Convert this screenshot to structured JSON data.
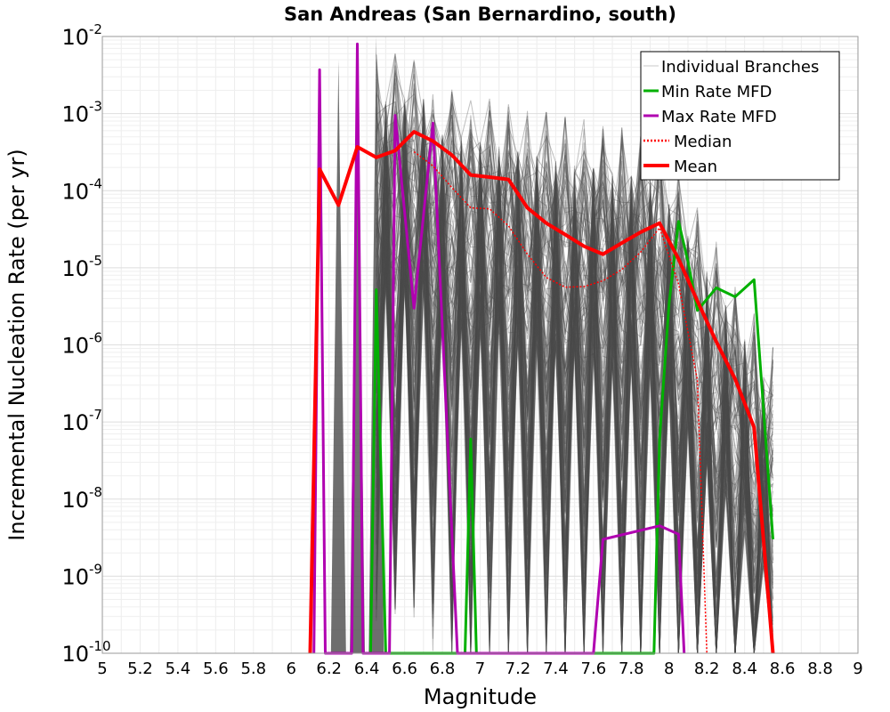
{
  "chart_data": {
    "type": "line",
    "title": "San Andreas (San Bernardino, south)",
    "xlabel": "Magnitude",
    "ylabel": "Incremental Nucleation Rate (per yr)",
    "xlim": [
      5,
      9
    ],
    "ylim": [
      1e-10,
      0.01
    ],
    "yscale": "log",
    "grid": true,
    "legend_position": "top-right",
    "x_ticks": [
      "5",
      "5.2",
      "5.4",
      "5.6",
      "5.8",
      "6",
      "6.2",
      "6.4",
      "6.6",
      "6.8",
      "7",
      "7.2",
      "7.4",
      "7.6",
      "7.8",
      "8",
      "8.2",
      "8.4",
      "8.6",
      "8.8",
      "9"
    ],
    "x_tick_values": [
      5,
      5.2,
      5.4,
      5.6,
      5.8,
      6,
      6.2,
      6.4,
      6.6,
      6.8,
      7,
      7.2,
      7.4,
      7.6,
      7.8,
      8,
      8.2,
      8.4,
      8.6,
      8.8,
      9
    ],
    "y_ticks": [
      {
        "base": "10",
        "exp": "-2",
        "value": 0.01
      },
      {
        "base": "10",
        "exp": "-3",
        "value": 0.001
      },
      {
        "base": "10",
        "exp": "-4",
        "value": 0.0001
      },
      {
        "base": "10",
        "exp": "-5",
        "value": 1e-05
      },
      {
        "base": "10",
        "exp": "-6",
        "value": 1e-06
      },
      {
        "base": "10",
        "exp": "-7",
        "value": 1e-07
      },
      {
        "base": "10",
        "exp": "-8",
        "value": 1e-08
      },
      {
        "base": "10",
        "exp": "-9",
        "value": 1e-09
      },
      {
        "base": "10",
        "exp": "-10",
        "value": 1e-10
      }
    ],
    "legend": [
      {
        "label": "Individual Branches",
        "color": "#c8c8c8",
        "style": "thin"
      },
      {
        "label": "Min Rate MFD",
        "color": "#00b000",
        "style": "solid"
      },
      {
        "label": "Max Rate MFD",
        "color": "#b000b0",
        "style": "solid"
      },
      {
        "label": "Median",
        "color": "#ff0000",
        "style": "dotted"
      },
      {
        "label": "Mean",
        "color": "#ff0000",
        "style": "thick"
      }
    ],
    "series": [
      {
        "name": "Mean",
        "color": "#ff0000",
        "points": [
          [
            6.1,
            1e-10
          ],
          [
            6.15,
            0.00019
          ],
          [
            6.25,
            6.5e-05
          ],
          [
            6.35,
            0.00037
          ],
          [
            6.45,
            0.00027
          ],
          [
            6.55,
            0.00033
          ],
          [
            6.65,
            0.00058
          ],
          [
            6.75,
            0.00044
          ],
          [
            6.85,
            0.00029
          ],
          [
            6.95,
            0.00016
          ],
          [
            7.05,
            0.00015
          ],
          [
            7.15,
            0.00014
          ],
          [
            7.25,
            6e-05
          ],
          [
            7.35,
            3.8e-05
          ],
          [
            7.45,
            2.7e-05
          ],
          [
            7.55,
            1.9e-05
          ],
          [
            7.65,
            1.5e-05
          ],
          [
            7.75,
            2.1e-05
          ],
          [
            7.85,
            2.9e-05
          ],
          [
            7.95,
            3.8e-05
          ],
          [
            8.05,
            1.3e-05
          ],
          [
            8.15,
            3.7e-06
          ],
          [
            8.25,
            1.1e-06
          ],
          [
            8.35,
            3.6e-07
          ],
          [
            8.45,
            8.5e-08
          ],
          [
            8.55,
            1e-10
          ]
        ]
      },
      {
        "name": "Median",
        "color": "#ff0000",
        "points": [
          [
            6.65,
            0.00032
          ],
          [
            6.75,
            0.00021
          ],
          [
            6.85,
            0.00011
          ],
          [
            6.95,
            6e-05
          ],
          [
            7.05,
            5.8e-05
          ],
          [
            7.15,
            3.5e-05
          ],
          [
            7.25,
            1.5e-05
          ],
          [
            7.35,
            7.5e-06
          ],
          [
            7.45,
            5.6e-06
          ],
          [
            7.55,
            5.7e-06
          ],
          [
            7.65,
            6.8e-06
          ],
          [
            7.75,
            9.5e-06
          ],
          [
            7.85,
            1.6e-05
          ],
          [
            7.95,
            3.3e-05
          ],
          [
            8.05,
            6.2e-06
          ],
          [
            8.15,
            3.5e-07
          ],
          [
            8.2,
            1e-10
          ]
        ]
      },
      {
        "name": "Min Rate MFD",
        "color": "#00b000",
        "points": [
          [
            6.42,
            1e-10
          ],
          [
            6.45,
            5.2e-06
          ],
          [
            6.5,
            1e-10
          ],
          [
            6.92,
            1e-10
          ],
          [
            6.95,
            6e-08
          ],
          [
            6.98,
            1e-10
          ],
          [
            7.92,
            1e-10
          ],
          [
            7.95,
            6e-08
          ],
          [
            8.0,
            3.5e-06
          ],
          [
            8.05,
            4e-05
          ],
          [
            8.1,
            1.2e-05
          ],
          [
            8.15,
            2.8e-06
          ],
          [
            8.25,
            5.5e-06
          ],
          [
            8.35,
            4.2e-06
          ],
          [
            8.45,
            7e-06
          ],
          [
            8.55,
            3e-09
          ]
        ]
      },
      {
        "name": "Max Rate MFD",
        "color": "#b000b0",
        "points": [
          [
            6.12,
            1e-10
          ],
          [
            6.15,
            0.0037
          ],
          [
            6.18,
            1e-10
          ],
          [
            6.32,
            1e-10
          ],
          [
            6.35,
            0.008
          ],
          [
            6.38,
            1e-10
          ],
          [
            6.52,
            1e-10
          ],
          [
            6.55,
            0.00095
          ],
          [
            6.65,
            3e-06
          ],
          [
            6.75,
            0.00075
          ],
          [
            6.88,
            1e-10
          ],
          [
            7.6,
            1e-10
          ],
          [
            7.65,
            3e-09
          ],
          [
            7.95,
            4.5e-09
          ],
          [
            8.05,
            3.5e-09
          ],
          [
            8.08,
            1e-10
          ]
        ]
      }
    ]
  }
}
